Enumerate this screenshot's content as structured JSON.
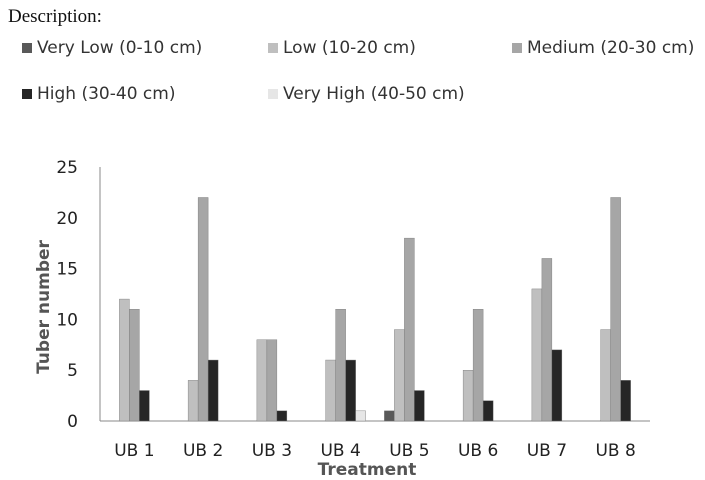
{
  "header": {
    "description": "Description:"
  },
  "chart_data": {
    "type": "bar",
    "title": "",
    "xlabel": "Treatment",
    "ylabel": "Tuber number",
    "ylim": [
      0,
      25
    ],
    "yticks": [
      "0",
      "5",
      "10",
      "15",
      "20",
      "25"
    ],
    "grid": false,
    "legend_position": "top",
    "categories": [
      "UB 1",
      "UB 2",
      "UB 3",
      "UB 4",
      "UB 5",
      "UB 6",
      "UB 7",
      "UB 8"
    ],
    "series": [
      {
        "name": "Very Low (0-10 cm)",
        "color": "#595959",
        "values": [
          0,
          0,
          0,
          0,
          1,
          0,
          0,
          0
        ]
      },
      {
        "name": "Low (10-20 cm)",
        "color": "#bfbfbf",
        "values": [
          12,
          4,
          8,
          6,
          9,
          5,
          13,
          9
        ]
      },
      {
        "name": "Medium (20-30 cm)",
        "color": "#a6a6a6",
        "values": [
          11,
          22,
          8,
          11,
          18,
          11,
          16,
          22
        ]
      },
      {
        "name": "High (30-40 cm)",
        "color": "#262626",
        "values": [
          3,
          6,
          1,
          6,
          3,
          2,
          7,
          4
        ]
      },
      {
        "name": "Very High (40-50 cm)",
        "color": "#e6e6e6",
        "values": [
          0,
          0,
          0,
          1,
          0,
          0,
          0,
          0
        ]
      }
    ]
  }
}
